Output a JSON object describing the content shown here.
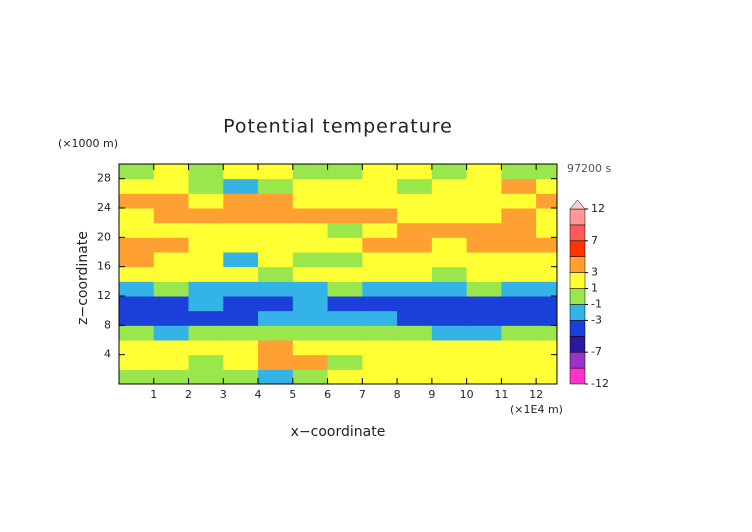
{
  "chart_data": {
    "type": "heatmap",
    "title": "Potential temperature",
    "y_unit": "(×1000 m)",
    "x_unit": "(×1E4 m)",
    "time_label": "97200 s",
    "xlabel": "x−coordinate",
    "ylabel": "z−coordinate",
    "x": [
      0.5,
      1.5,
      2.5,
      3.5,
      4.5,
      5.5,
      6.5,
      7.5,
      8.5,
      9.5,
      10.5,
      11.5,
      12.5
    ],
    "y": [
      1,
      3,
      5,
      7,
      9,
      11,
      13,
      15,
      17,
      19,
      21,
      23,
      25,
      27,
      29
    ],
    "values": [
      [
        0,
        0,
        0,
        0,
        -2,
        0,
        1,
        1,
        1,
        1,
        1,
        1,
        1
      ],
      [
        1,
        1,
        -1,
        1,
        3,
        4,
        -1,
        1,
        1,
        1,
        1,
        1,
        1
      ],
      [
        1,
        1,
        2,
        1,
        3,
        1,
        1,
        1,
        1,
        1,
        1,
        1,
        1
      ],
      [
        -1,
        -2,
        -1,
        -1,
        -1,
        0,
        -1,
        0,
        -1,
        -2,
        -2,
        -1,
        -1
      ],
      [
        -4,
        -4,
        -4,
        -4,
        -3,
        -3,
        -3,
        -3,
        -4,
        -4,
        -4,
        -4,
        -4
      ],
      [
        -4,
        -4,
        -3,
        -4,
        -4,
        -3,
        -4,
        -4,
        -4,
        -4,
        -4,
        -4,
        -4
      ],
      [
        -2,
        -1,
        -2,
        -2,
        -2,
        -2,
        -1,
        -2,
        -2,
        -2,
        -1,
        -2,
        -2
      ],
      [
        1,
        2,
        1,
        1,
        0,
        1,
        1,
        1,
        1,
        0,
        1,
        1,
        1
      ],
      [
        3,
        2,
        1,
        -2,
        1,
        0,
        -1,
        1,
        2,
        1,
        2,
        1,
        2
      ],
      [
        3,
        3,
        2,
        1,
        2,
        2,
        1,
        3,
        3,
        2,
        3,
        3,
        3
      ],
      [
        1,
        2,
        1,
        2,
        2,
        1,
        0,
        2,
        3,
        4,
        4,
        3,
        2
      ],
      [
        2,
        3,
        4,
        4,
        4,
        4,
        4,
        3,
        2,
        2,
        2,
        3,
        2
      ],
      [
        4,
        3,
        2,
        3,
        3,
        2,
        1,
        1,
        2,
        1,
        2,
        1,
        3
      ],
      [
        1,
        1,
        0,
        -2,
        -1,
        1,
        1,
        1,
        0,
        1,
        1,
        3,
        2
      ],
      [
        0,
        1,
        0,
        1,
        1,
        0,
        0,
        1,
        1,
        0,
        1,
        0,
        0
      ]
    ],
    "xlim": [
      0,
      12.6
    ],
    "ylim": [
      0,
      30
    ],
    "xticks": [
      1,
      2,
      3,
      4,
      5,
      6,
      7,
      8,
      9,
      10,
      11,
      12
    ],
    "yticks": [
      4,
      8,
      12,
      16,
      20,
      24,
      28
    ],
    "levels": [
      -12,
      -9,
      -7,
      -5,
      -3,
      -1,
      1,
      3,
      5,
      7,
      9,
      12
    ],
    "colors": [
      "#ff33cc",
      "#9933cc",
      "#2a1a99",
      "#1a40d9",
      "#33b3e6",
      "#99e64d",
      "#ffff33",
      "#ffa033",
      "#ff3300",
      "#ff5a5a",
      "#ff9999"
    ],
    "over_color": "#ffcccc",
    "colorbar_ticks": [
      -12,
      -7,
      -3,
      -1,
      1,
      3,
      7,
      12
    ]
  }
}
